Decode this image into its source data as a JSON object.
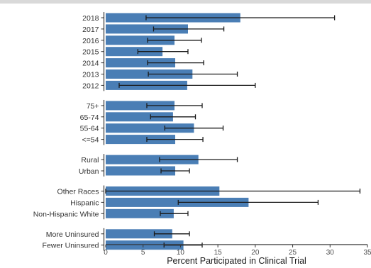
{
  "chart_data": {
    "type": "bar",
    "orientation": "horizontal",
    "xlabel": "Percent Participated in Clinical Trial",
    "ylabel": "",
    "xlim": [
      0,
      35
    ],
    "xticks": [
      0,
      5,
      10,
      15,
      20,
      25,
      30,
      35
    ],
    "grid": false,
    "bar_color": "#4a7eb5",
    "groups": [
      {
        "categories": [
          "2018",
          "2017",
          "2016",
          "2015",
          "2014",
          "2013",
          "2012"
        ],
        "values": [
          18.0,
          11.0,
          9.2,
          7.6,
          9.3,
          11.6,
          10.9
        ],
        "ci_low": [
          5.4,
          6.4,
          5.6,
          4.3,
          5.6,
          5.7,
          1.8
        ],
        "ci_high": [
          30.6,
          15.8,
          12.8,
          11.0,
          13.1,
          17.6,
          20.0
        ]
      },
      {
        "categories": [
          "75+",
          "65-74",
          "55-64",
          "<=54"
        ],
        "values": [
          9.2,
          9.0,
          11.8,
          9.3
        ],
        "ci_low": [
          5.5,
          6.0,
          7.9,
          5.5
        ],
        "ci_high": [
          12.9,
          12.0,
          15.7,
          13.0
        ]
      },
      {
        "categories": [
          "Rural",
          "Urban"
        ],
        "values": [
          12.4,
          9.3
        ],
        "ci_low": [
          7.2,
          7.4
        ],
        "ci_high": [
          17.6,
          11.2
        ]
      },
      {
        "categories": [
          "Other Races",
          "Hispanic",
          "Non-Hispanic White"
        ],
        "values": [
          15.2,
          19.1,
          9.1
        ],
        "ci_low": [
          0.0,
          9.7,
          7.3
        ],
        "ci_high": [
          34.0,
          28.4,
          11.0
        ]
      },
      {
        "categories": [
          "More Uninsured",
          "Fewer Uninsured"
        ],
        "values": [
          8.9,
          10.4
        ],
        "ci_low": [
          6.5,
          7.8
        ],
        "ci_high": [
          11.2,
          12.9
        ]
      }
    ]
  }
}
